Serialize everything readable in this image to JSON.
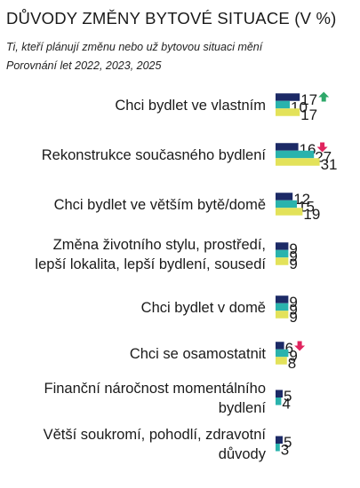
{
  "chart_data": {
    "type": "bar",
    "orientation": "horizontal",
    "title": "DŮVODY ZMĚNY BYTOVÉ SITUACE (V %)",
    "subtitle": "Ti, kteří plánují změnu nebo už bytovou situaci mění",
    "subtitle2": "Porovnání let 2022, 2023, 2025",
    "categories": [
      [
        "Chci bydlet ve vlastním"
      ],
      [
        "Rekonstrukce současného bydlení"
      ],
      [
        "Chci bydlet ve větším bytě/domě"
      ],
      [
        "Změna životního stylu, prostředí,",
        "lepší lokalita, lepší bydlení, sousedí"
      ],
      [
        "Chci bydlet v domě"
      ],
      [
        "Chci se osamostatnit"
      ],
      [
        "Finanční náročnost momentálního",
        "bydlení"
      ],
      [
        "Větší soukromí, pohodlí, zdravotní",
        "důvody"
      ]
    ],
    "series": [
      {
        "color": "#1c2a66",
        "values": [
          17,
          16,
          12,
          9,
          9,
          6,
          5,
          5
        ]
      },
      {
        "color": "#2ab3ad",
        "values": [
          10,
          27,
          15,
          9,
          9,
          9,
          4,
          3
        ]
      },
      {
        "color": "#e3e25a",
        "values": [
          17,
          31,
          19,
          9,
          9,
          8,
          null,
          null
        ]
      }
    ],
    "trend_markers": [
      {
        "category_index": 0,
        "direction": "up",
        "color": "#2ea86a"
      },
      {
        "category_index": 1,
        "direction": "down",
        "color": "#e0245e"
      },
      {
        "category_index": 5,
        "direction": "down",
        "color": "#e0245e"
      }
    ],
    "xlim": [
      0,
      31
    ]
  }
}
